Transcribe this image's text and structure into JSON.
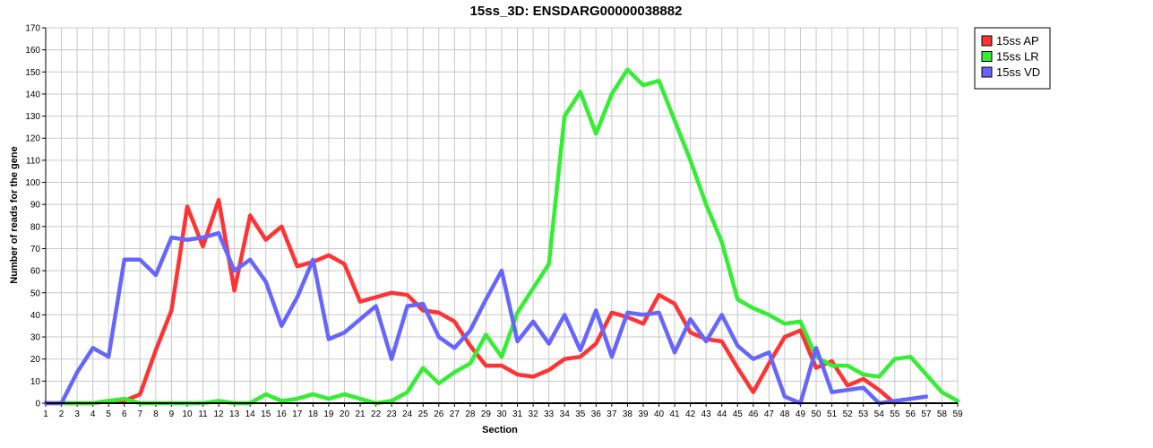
{
  "chart_data": {
    "type": "line",
    "title": "15ss_3D: ENSDARG00000038882",
    "xlabel": "Section",
    "ylabel": "Number of reads for the gene",
    "xlim": [
      1,
      59
    ],
    "ylim": [
      0,
      170
    ],
    "y_ticks": [
      0,
      10,
      20,
      30,
      40,
      50,
      60,
      70,
      80,
      90,
      100,
      110,
      120,
      130,
      140,
      150,
      160,
      170
    ],
    "x_ticks": [
      1,
      2,
      3,
      4,
      5,
      6,
      7,
      8,
      9,
      10,
      11,
      12,
      13,
      14,
      15,
      16,
      17,
      18,
      19,
      20,
      21,
      22,
      23,
      24,
      25,
      26,
      27,
      28,
      29,
      30,
      31,
      32,
      33,
      34,
      35,
      36,
      37,
      38,
      39,
      40,
      41,
      42,
      43,
      44,
      45,
      46,
      47,
      48,
      49,
      50,
      51,
      52,
      53,
      54,
      55,
      56,
      57,
      58,
      59
    ],
    "grid": true,
    "legend_position": "top-right",
    "series": [
      {
        "name": "15ss AP",
        "color": "#ff3333",
        "x": [
          1,
          2,
          3,
          4,
          5,
          6,
          7,
          8,
          9,
          10,
          11,
          12,
          13,
          14,
          15,
          16,
          17,
          18,
          19,
          20,
          21,
          22,
          23,
          24,
          25,
          26,
          27,
          28,
          29,
          30,
          31,
          32,
          33,
          34,
          35,
          36,
          37,
          38,
          39,
          40,
          41,
          42,
          43,
          44,
          45,
          46,
          47,
          48,
          49,
          50,
          51,
          52,
          53,
          54,
          55
        ],
        "values": [
          0,
          0,
          0,
          0,
          1,
          1,
          4,
          24,
          42,
          89,
          71,
          92,
          51,
          85,
          74,
          80,
          62,
          64,
          67,
          63,
          46,
          48,
          50,
          49,
          42,
          41,
          37,
          26,
          17,
          17,
          13,
          12,
          15,
          20,
          21,
          27,
          41,
          39,
          36,
          49,
          45,
          32,
          29,
          28,
          16,
          5,
          18,
          30,
          33,
          16,
          19,
          8,
          11,
          6,
          0
        ]
      },
      {
        "name": "15ss LR",
        "color": "#33ee33",
        "x": [
          1,
          2,
          3,
          4,
          5,
          6,
          7,
          8,
          9,
          10,
          11,
          12,
          13,
          14,
          15,
          16,
          17,
          18,
          19,
          20,
          21,
          22,
          23,
          24,
          25,
          26,
          27,
          28,
          29,
          30,
          31,
          32,
          33,
          34,
          35,
          36,
          37,
          38,
          39,
          40,
          41,
          42,
          43,
          44,
          45,
          46,
          47,
          48,
          49,
          50,
          51,
          52,
          53,
          54,
          55,
          56,
          57,
          58,
          59
        ],
        "values": [
          0,
          0,
          0,
          0,
          1,
          2,
          0,
          0,
          0,
          0,
          0,
          1,
          0,
          0,
          4,
          1,
          2,
          4,
          2,
          4,
          2,
          0,
          1,
          5,
          16,
          9,
          14,
          18,
          31,
          21,
          41,
          52,
          63,
          130,
          141,
          122,
          140,
          151,
          144,
          146,
          128,
          110,
          90,
          73,
          47,
          43,
          40,
          36,
          37,
          21,
          17,
          17,
          13,
          12,
          20,
          21,
          13,
          5,
          1
        ]
      },
      {
        "name": "15ss VD",
        "color": "#6666ff",
        "x": [
          1,
          2,
          3,
          4,
          5,
          6,
          7,
          8,
          9,
          10,
          11,
          12,
          13,
          14,
          15,
          16,
          17,
          18,
          19,
          20,
          21,
          22,
          23,
          24,
          25,
          26,
          27,
          28,
          29,
          30,
          31,
          32,
          33,
          34,
          35,
          36,
          37,
          38,
          39,
          40,
          41,
          42,
          43,
          44,
          45,
          46,
          47,
          48,
          49,
          50,
          51,
          52,
          53,
          54,
          55,
          56,
          57
        ],
        "values": [
          0,
          0,
          14,
          25,
          21,
          65,
          65,
          58,
          75,
          74,
          75,
          77,
          60,
          65,
          55,
          35,
          48,
          65,
          29,
          32,
          38,
          44,
          20,
          44,
          45,
          30,
          25,
          33,
          47,
          60,
          28,
          37,
          27,
          40,
          24,
          42,
          21,
          41,
          40,
          41,
          23,
          38,
          28,
          40,
          26,
          20,
          23,
          3,
          0,
          25,
          5,
          6,
          7,
          0,
          1,
          2,
          3
        ]
      }
    ]
  }
}
